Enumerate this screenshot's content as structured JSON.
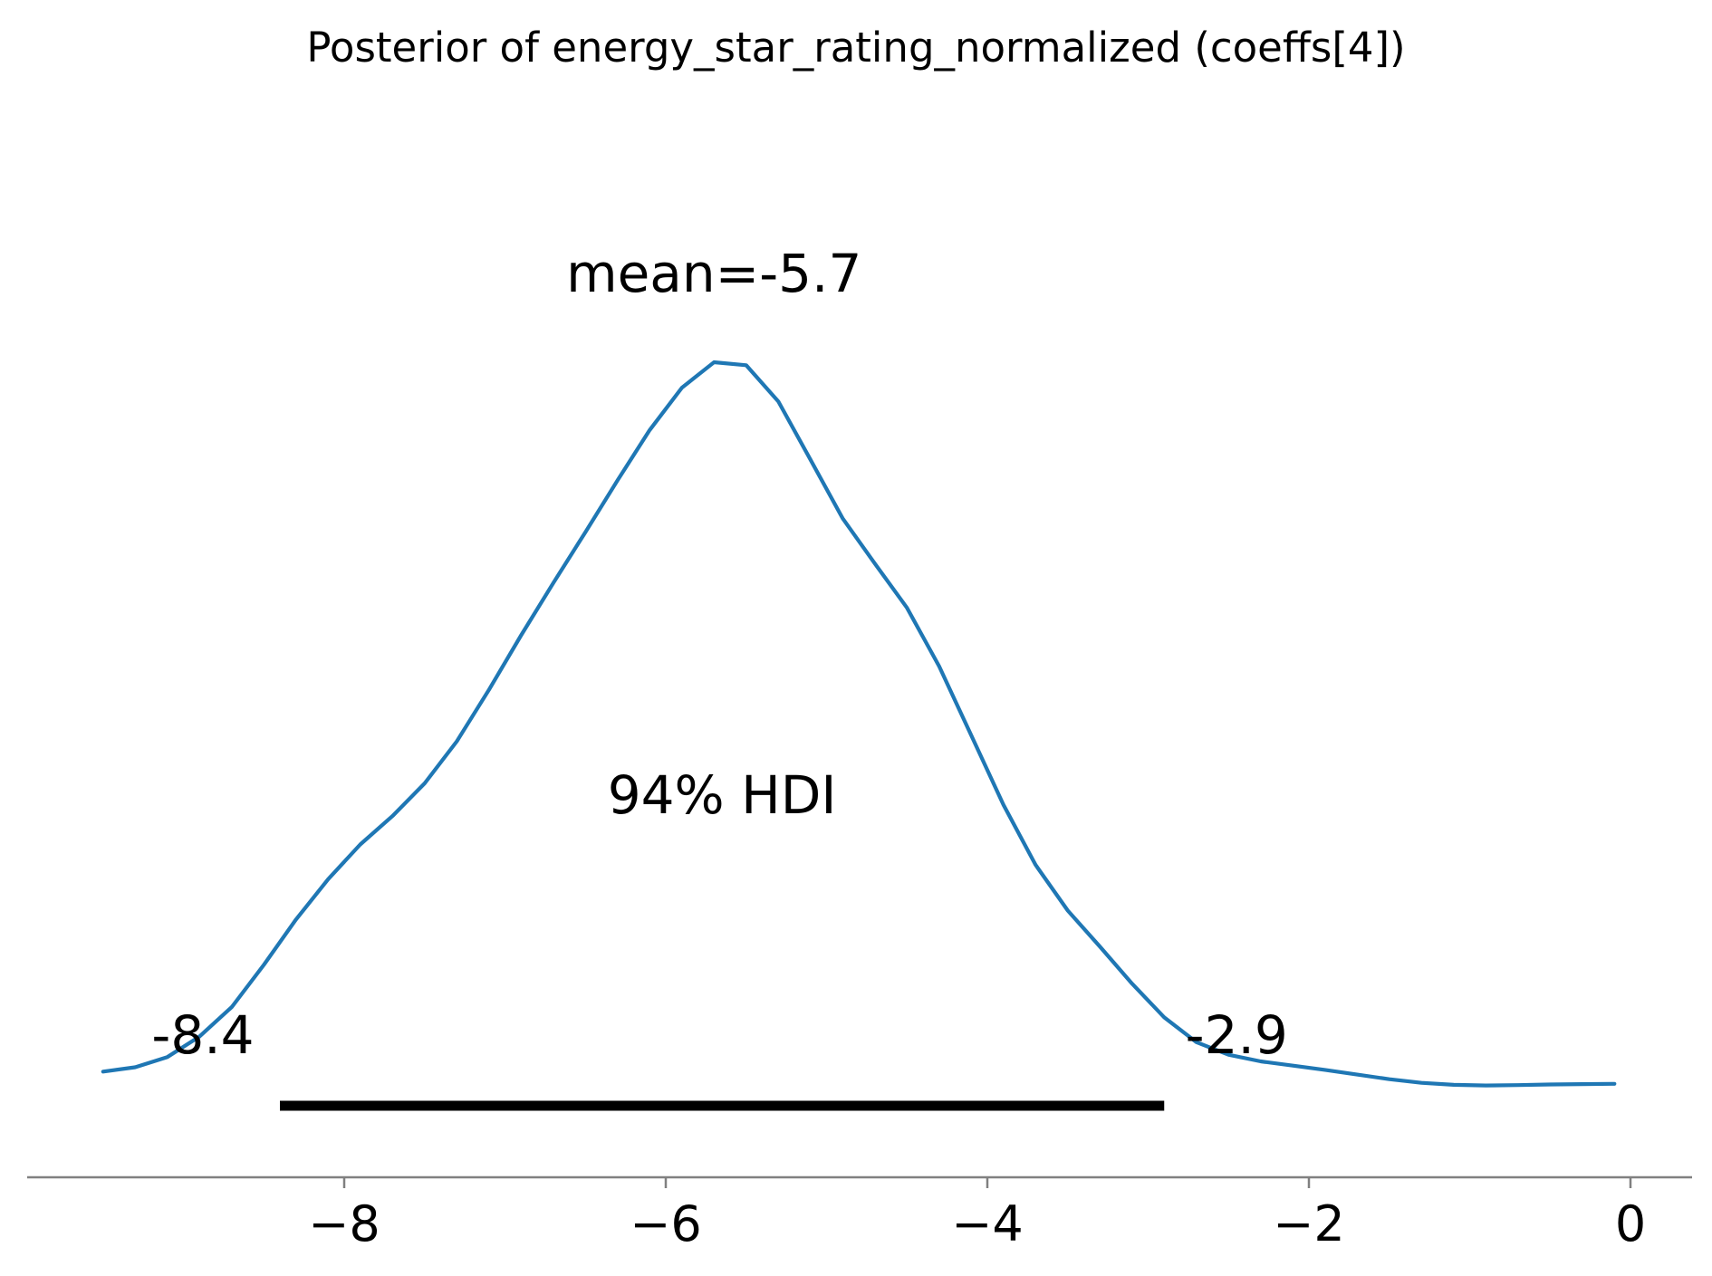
{
  "chart_data": {
    "type": "line",
    "title": "Posterior of energy_star_rating_normalized (coeffs[4])",
    "xlabel": "",
    "ylabel": "",
    "xlim": [
      -9.9,
      0.2
    ],
    "ylim": [
      0,
      0.29
    ],
    "grid": false,
    "x_ticks": [
      -8,
      -6,
      -4,
      -2,
      0
    ],
    "x_tick_labels": [
      "−8",
      "−6",
      "−4",
      "−2",
      "0"
    ],
    "density_curve": {
      "x": [
        -9.5,
        -9.3,
        -9.1,
        -8.9,
        -8.7,
        -8.5,
        -8.3,
        -8.1,
        -7.9,
        -7.7,
        -7.5,
        -7.3,
        -7.1,
        -6.9,
        -6.7,
        -6.5,
        -6.3,
        -6.1,
        -5.9,
        -5.7,
        -5.5,
        -5.3,
        -5.1,
        -4.9,
        -4.7,
        -4.5,
        -4.3,
        -4.1,
        -3.9,
        -3.7,
        -3.5,
        -3.3,
        -3.1,
        -2.9,
        -2.7,
        -2.5,
        -2.3,
        -2.1,
        -1.9,
        -1.7,
        -1.5,
        -1.3,
        -1.1,
        -0.9,
        -0.7,
        -0.5,
        -0.3,
        -0.1
      ],
      "y": [
        0.0002,
        0.0015,
        0.0046,
        0.0108,
        0.0197,
        0.0325,
        0.0462,
        0.0584,
        0.0689,
        0.0775,
        0.0874,
        0.1001,
        0.1157,
        0.1322,
        0.148,
        0.1634,
        0.1791,
        0.1943,
        0.2071,
        0.2148,
        0.2139,
        0.2029,
        0.1853,
        0.1676,
        0.1539,
        0.1405,
        0.1228,
        0.1019,
        0.0809,
        0.0627,
        0.0489,
        0.038,
        0.0268,
        0.0166,
        0.0091,
        0.0053,
        0.0033,
        0.002,
        0.0007,
        -0.0007,
        -0.0021,
        -0.0032,
        -0.0038,
        -0.004,
        -0.0039,
        -0.0037,
        -0.0036,
        -0.0035
      ],
      "color": "#1f77b4"
    },
    "mean": {
      "value": -5.7,
      "label": "mean=-5.7"
    },
    "hdi": {
      "label": "94% HDI",
      "low": -8.4,
      "high": -2.9,
      "low_label": "-8.4",
      "high_label": "-2.9",
      "color": "#000000"
    },
    "axis_color": "#808080"
  }
}
